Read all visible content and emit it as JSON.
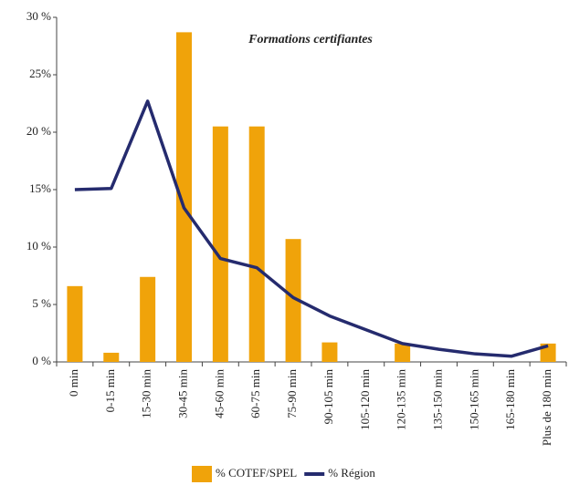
{
  "chart_data": {
    "type": "bar",
    "title": "Formations certifiantes",
    "categories": [
      "0 min",
      "0-15 min",
      "15-30 min",
      "30-45 min",
      "45-60 min",
      "60-75 min",
      "75-90 min",
      "90-105 min",
      "105-120 min",
      "120-135 min",
      "135-150 min",
      "150-165 min",
      "165-180 min",
      "Plus de 180 min"
    ],
    "series": [
      {
        "name": "% COTEF/SPEL",
        "type": "bar",
        "color": "#f0a30a",
        "values": [
          6.6,
          0.8,
          7.4,
          28.7,
          20.5,
          20.5,
          10.7,
          1.7,
          0,
          1.6,
          0,
          0,
          0,
          1.6
        ]
      },
      {
        "name": "% Région",
        "type": "line",
        "color": "#252b6e",
        "values": [
          15.0,
          15.1,
          22.7,
          13.4,
          9.0,
          8.2,
          5.6,
          4.0,
          2.8,
          1.6,
          1.1,
          0.7,
          0.5,
          1.4
        ]
      }
    ],
    "ylim": [
      0,
      30
    ],
    "yticks": [
      {
        "value": 0,
        "label": "0 %"
      },
      {
        "value": 5,
        "label": "5 %"
      },
      {
        "value": 10,
        "label": "10 %"
      },
      {
        "value": 15,
        "label": "15%"
      },
      {
        "value": 20,
        "label": "20 %"
      },
      {
        "value": 25,
        "label": "25%"
      },
      {
        "value": 30,
        "label": "30 %"
      }
    ],
    "grid": false,
    "legend": "bottom"
  }
}
